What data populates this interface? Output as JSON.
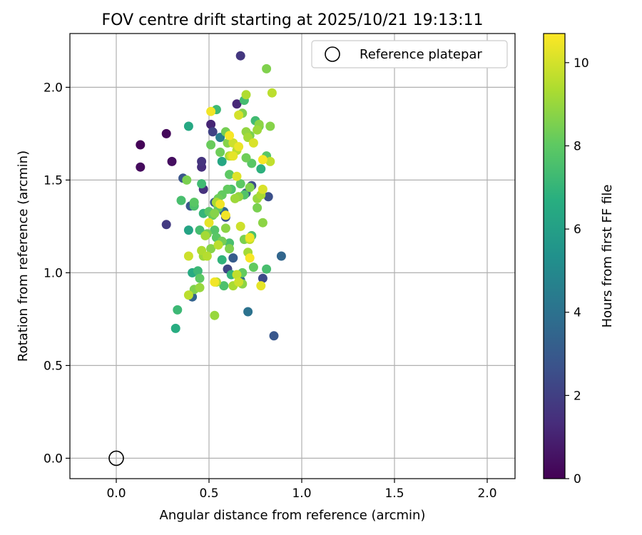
{
  "chart_data": {
    "type": "scatter",
    "title": "FOV centre drift starting at 2025/10/21 19:13:11",
    "xlabel": "Angular distance from reference (arcmin)",
    "ylabel": "Rotation from reference (arcmin)",
    "xlim": [
      -0.25,
      2.15
    ],
    "ylim": [
      -0.11,
      2.29
    ],
    "xticks": [
      0.0,
      0.5,
      1.0,
      1.5,
      2.0
    ],
    "xtick_labels": [
      "0.0",
      "0.5",
      "1.0",
      "1.5",
      "2.0"
    ],
    "yticks": [
      0.0,
      0.5,
      1.0,
      1.5,
      2.0
    ],
    "ytick_labels": [
      "0.0",
      "0.5",
      "1.0",
      "1.5",
      "2.0"
    ],
    "grid": true,
    "legend": {
      "position": "top-right",
      "entries": [
        "Reference platepar"
      ]
    },
    "reference_point": {
      "label": "Reference platepar",
      "x": 0.0,
      "y": 0.0
    },
    "colorbar": {
      "label": "Hours from first FF file",
      "colormap": "viridis",
      "range": [
        0,
        10.7
      ],
      "ticks": [
        0,
        2,
        4,
        6,
        8,
        10
      ],
      "tick_labels": [
        "0",
        "2",
        "4",
        "6",
        "8",
        "10"
      ]
    },
    "series": [
      {
        "name": "FF files",
        "points": [
          [
            0.13,
            1.69,
            0.1
          ],
          [
            0.13,
            1.57,
            0.3
          ],
          [
            0.27,
            1.75,
            0.2
          ],
          [
            0.3,
            1.6,
            0.4
          ],
          [
            0.27,
            1.26,
            1.8
          ],
          [
            0.67,
            2.17,
            1.7
          ],
          [
            0.65,
            1.91,
            1.2
          ],
          [
            0.51,
            1.8,
            1.1
          ],
          [
            0.52,
            1.76,
            2.1
          ],
          [
            0.46,
            1.6,
            1.6
          ],
          [
            0.46,
            1.57,
            1.4
          ],
          [
            0.47,
            1.45,
            1.5
          ],
          [
            0.36,
            1.51,
            2.8
          ],
          [
            0.4,
            1.36,
            2.9
          ],
          [
            0.41,
            0.87,
            3.4
          ],
          [
            0.71,
            0.79,
            4.0
          ],
          [
            0.85,
            0.66,
            2.9
          ],
          [
            0.89,
            1.09,
            3.5
          ],
          [
            0.82,
            1.41,
            2.6
          ],
          [
            0.73,
            1.47,
            2.5
          ],
          [
            0.7,
            1.43,
            3.0
          ],
          [
            0.59,
            1.3,
            2.7
          ],
          [
            0.53,
            1.38,
            3.2
          ],
          [
            0.58,
            1.33,
            3.6
          ],
          [
            0.63,
            1.08,
            3.1
          ],
          [
            0.6,
            1.02,
            2.2
          ],
          [
            0.79,
            0.97,
            2.4
          ],
          [
            0.67,
            0.96,
            3.8
          ],
          [
            0.56,
            1.73,
            4.5
          ],
          [
            0.57,
            1.6,
            6.3
          ],
          [
            0.39,
            1.79,
            6.4
          ],
          [
            0.39,
            1.23,
            6.2
          ],
          [
            0.41,
            1.0,
            6.5
          ],
          [
            0.32,
            0.7,
            6.6
          ],
          [
            0.33,
            0.8,
            7.2
          ],
          [
            0.35,
            1.39,
            7.5
          ],
          [
            0.38,
            1.5,
            8.5
          ],
          [
            0.46,
            1.48,
            7.3
          ],
          [
            0.42,
            1.38,
            7.9
          ],
          [
            0.42,
            1.36,
            7.6
          ],
          [
            0.47,
            1.32,
            7.0
          ],
          [
            0.45,
            1.23,
            7.4
          ],
          [
            0.44,
            1.01,
            7.2
          ],
          [
            0.45,
            0.97,
            8.0
          ],
          [
            0.42,
            0.91,
            8.6
          ],
          [
            0.45,
            0.92,
            9.0
          ],
          [
            0.39,
            0.88,
            9.6
          ],
          [
            0.39,
            1.09,
            9.9
          ],
          [
            0.46,
            1.12,
            9.4
          ],
          [
            0.47,
            1.09,
            9.1
          ],
          [
            0.48,
            1.2,
            9.2
          ],
          [
            0.5,
            1.27,
            10.3
          ],
          [
            0.52,
            1.31,
            8.2
          ],
          [
            0.53,
            1.23,
            7.8
          ],
          [
            0.54,
            1.19,
            7.9
          ],
          [
            0.55,
            1.15,
            9.6
          ],
          [
            0.56,
            1.37,
            10.5
          ],
          [
            0.55,
            1.4,
            8.3
          ],
          [
            0.57,
            1.42,
            8.1
          ],
          [
            0.59,
            1.31,
            10.5
          ],
          [
            0.59,
            1.24,
            8.8
          ],
          [
            0.61,
            1.16,
            7.5
          ],
          [
            0.61,
            1.13,
            8.6
          ],
          [
            0.62,
            0.99,
            7.0
          ],
          [
            0.63,
            0.93,
            9.3
          ],
          [
            0.65,
            0.99,
            9.7
          ],
          [
            0.66,
            0.95,
            9.9
          ],
          [
            0.68,
            1.0,
            8.1
          ],
          [
            0.68,
            0.94,
            8.8
          ],
          [
            0.58,
            0.93,
            7.6
          ],
          [
            0.57,
            1.07,
            6.9
          ],
          [
            0.53,
            0.95,
            10.5
          ],
          [
            0.54,
            0.95,
            9.4
          ],
          [
            0.53,
            0.77,
            9.0
          ],
          [
            0.49,
            1.21,
            8.4
          ],
          [
            0.51,
            1.13,
            8.7
          ],
          [
            0.49,
            1.09,
            9.5
          ],
          [
            0.59,
            1.76,
            8.4
          ],
          [
            0.61,
            1.74,
            10.6
          ],
          [
            0.61,
            1.63,
            9.3
          ],
          [
            0.63,
            1.63,
            10.3
          ],
          [
            0.66,
            1.68,
            10.4
          ],
          [
            0.65,
            1.66,
            9.6
          ],
          [
            0.63,
            1.7,
            9.9
          ],
          [
            0.61,
            1.53,
            8.0
          ],
          [
            0.65,
            1.52,
            10.2
          ],
          [
            0.62,
            1.45,
            7.6
          ],
          [
            0.64,
            1.4,
            9.1
          ],
          [
            0.66,
            1.41,
            8.9
          ],
          [
            0.67,
            1.48,
            8.0
          ],
          [
            0.69,
            1.42,
            7.7
          ],
          [
            0.72,
            1.46,
            8.6
          ],
          [
            0.7,
            1.62,
            8.3
          ],
          [
            0.73,
            1.59,
            7.9
          ],
          [
            0.74,
            1.7,
            10.1
          ],
          [
            0.75,
            1.82,
            7.3
          ],
          [
            0.77,
            1.79,
            8.3
          ],
          [
            0.77,
            1.8,
            8.8
          ],
          [
            0.76,
            1.77,
            9.1
          ],
          [
            0.72,
            1.74,
            8.5
          ],
          [
            0.71,
            1.73,
            9.2
          ],
          [
            0.7,
            1.76,
            8.9
          ],
          [
            0.68,
            1.86,
            8.6
          ],
          [
            0.66,
            1.85,
            10.0
          ],
          [
            0.69,
            1.93,
            7.4
          ],
          [
            0.7,
            1.96,
            9.4
          ],
          [
            0.81,
            2.1,
            8.6
          ],
          [
            0.84,
            1.97,
            9.6
          ],
          [
            0.83,
            1.79,
            8.7
          ],
          [
            0.83,
            1.6,
            9.7
          ],
          [
            0.81,
            1.63,
            7.9
          ],
          [
            0.79,
            1.61,
            10.6
          ],
          [
            0.78,
            1.56,
            6.8
          ],
          [
            0.79,
            1.45,
            10.1
          ],
          [
            0.78,
            1.42,
            9.3
          ],
          [
            0.76,
            1.4,
            9.0
          ],
          [
            0.76,
            1.35,
            8.5
          ],
          [
            0.79,
            1.27,
            8.8
          ],
          [
            0.73,
            1.2,
            7.6
          ],
          [
            0.72,
            1.18,
            9.7
          ],
          [
            0.71,
            1.11,
            9.2
          ],
          [
            0.72,
            1.08,
            10.6
          ],
          [
            0.74,
            1.03,
            8.1
          ],
          [
            0.81,
            1.02,
            7.5
          ],
          [
            0.78,
            0.93,
            10.3
          ],
          [
            0.72,
            1.19,
            10.4
          ],
          [
            0.69,
            1.18,
            8.5
          ],
          [
            0.67,
            1.25,
            9.9
          ],
          [
            0.54,
            1.88,
            7.2
          ],
          [
            0.56,
            1.65,
            8.3
          ],
          [
            0.51,
            1.69,
            8.2
          ],
          [
            0.51,
            1.87,
            10.5
          ],
          [
            0.54,
            1.38,
            9.3
          ],
          [
            0.53,
            1.32,
            8.7
          ],
          [
            0.5,
            1.33,
            7.9
          ],
          [
            0.55,
            1.35,
            8.0
          ],
          [
            0.57,
            1.17,
            8.4
          ],
          [
            0.6,
            1.45,
            8.1
          ],
          [
            0.6,
            1.7,
            8.7
          ],
          [
            0.62,
            1.63,
            9.9
          ]
        ]
      }
    ]
  }
}
